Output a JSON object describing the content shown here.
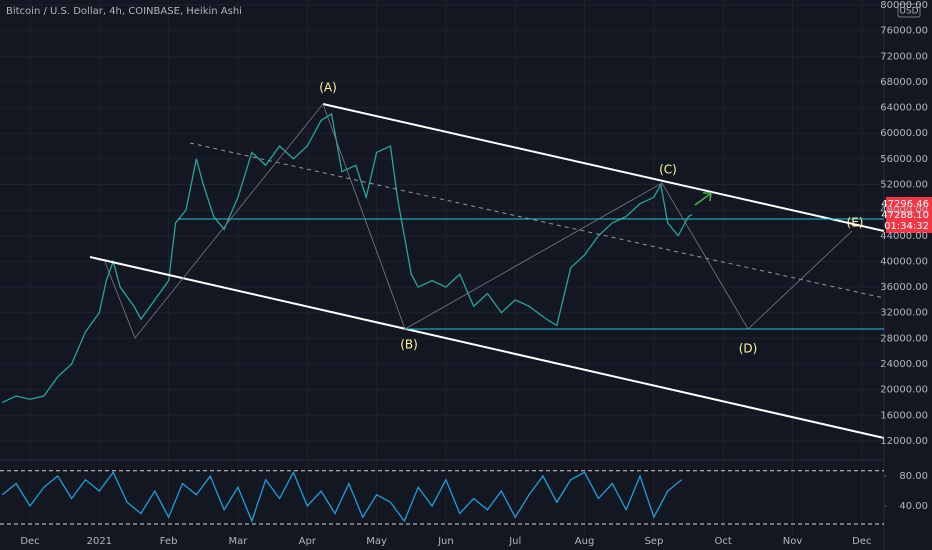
{
  "header": {
    "title": "Bitcoin / U.S. Dollar, 4h, COINBASE, Heikin Ashi",
    "currency": "USD",
    "price_tags": [
      "47296.46",
      "47288.10",
      "01:34:32"
    ]
  },
  "chart_data": [
    {
      "type": "line",
      "color": "#26a69a",
      "grid": true,
      "annotations": [
        "(A)",
        "(B)",
        "(C)",
        "(D)",
        "(E)"
      ],
      "x": [
        -0.4,
        -0.2,
        0,
        0.2,
        0.4,
        0.6,
        0.8,
        1.0,
        1.1,
        1.2,
        1.3,
        1.5,
        1.6,
        1.8,
        2.0,
        2.1,
        2.25,
        2.4,
        2.5,
        2.65,
        2.8,
        3.0,
        3.2,
        3.4,
        3.6,
        3.8,
        4.0,
        4.2,
        4.35,
        4.5,
        4.7,
        4.85,
        5.0,
        5.2,
        5.3,
        5.5,
        5.6,
        5.8,
        6.0,
        6.2,
        6.4,
        6.6,
        6.8,
        7.0,
        7.2,
        7.45,
        7.6,
        7.8,
        8.0,
        8.2,
        8.4,
        8.6,
        8.8,
        9.0,
        9.1,
        9.2,
        9.35,
        9.5,
        9.55
      ],
      "values": [
        18000,
        19000,
        18500,
        19000,
        22000,
        24000,
        29000,
        32000,
        37000,
        40000,
        36000,
        33000,
        31000,
        34000,
        37000,
        46000,
        48000,
        56000,
        52000,
        47000,
        45000,
        50000,
        57000,
        55000,
        58000,
        56000,
        58000,
        62000,
        63000,
        54000,
        55000,
        50000,
        57000,
        58000,
        50000,
        38000,
        36000,
        37000,
        36000,
        38000,
        33000,
        35000,
        32000,
        34000,
        33000,
        31000,
        30000,
        39000,
        41000,
        44000,
        46000,
        47000,
        49000,
        50000,
        52000,
        46000,
        44000,
        47000,
        47288
      ],
      "xlim": [
        -0.433,
        12.32
      ],
      "ylim": [
        9800,
        80780
      ],
      "xticks": [
        {
          "value": 0,
          "label": "Dec"
        },
        {
          "value": 1,
          "label": "2021"
        },
        {
          "value": 2,
          "label": "Feb"
        },
        {
          "value": 3,
          "label": "Mar"
        },
        {
          "value": 4,
          "label": "Apr"
        },
        {
          "value": 5,
          "label": "May"
        },
        {
          "value": 6,
          "label": "Jun"
        },
        {
          "value": 7,
          "label": "Jul"
        },
        {
          "value": 8,
          "label": "Aug"
        },
        {
          "value": 9,
          "label": "Sep"
        },
        {
          "value": 10,
          "label": "Oct"
        },
        {
          "value": 11,
          "label": "Nov"
        },
        {
          "value": 12,
          "label": "Dec"
        }
      ],
      "yticks": [
        {
          "value": 12000,
          "label": "12000.00"
        },
        {
          "value": 16000,
          "label": "16000.00"
        },
        {
          "value": 20000,
          "label": "20000.00"
        },
        {
          "value": 24000,
          "label": "24000.00"
        },
        {
          "value": 28000,
          "label": "28000.00"
        },
        {
          "value": 32000,
          "label": "32000.00"
        },
        {
          "value": 36000,
          "label": "36000.00"
        },
        {
          "value": 40000,
          "label": "40000.00"
        },
        {
          "value": 44000,
          "label": "44000.00"
        },
        {
          "value": 48000,
          "label": "48000.00"
        },
        {
          "value": 52000,
          "label": "52000.00"
        },
        {
          "value": 56000,
          "label": "56000.00"
        },
        {
          "value": 60000,
          "label": "60000.00"
        },
        {
          "value": 64000,
          "label": "64000.00"
        },
        {
          "value": 68000,
          "label": "68000.00"
        },
        {
          "value": 72000,
          "label": "72000.00"
        },
        {
          "value": 76000,
          "label": "76000.00"
        },
        {
          "value": 80000,
          "label": "80000.00"
        }
      ]
    },
    {
      "type": "line",
      "color": "#1e9fd8",
      "xlim": [
        -0.433,
        12.32
      ],
      "ylim": [
        8,
        94.7
      ],
      "yticks": [
        {
          "value": 40,
          "label": "40.00"
        },
        {
          "value": 80,
          "label": "80.00"
        }
      ],
      "bands": [
        87,
        16
      ],
      "x": [
        -0.4,
        -0.2,
        0,
        0.2,
        0.4,
        0.6,
        0.8,
        1.0,
        1.2,
        1.4,
        1.6,
        1.8,
        2.0,
        2.2,
        2.4,
        2.6,
        2.8,
        3.0,
        3.2,
        3.4,
        3.6,
        3.8,
        4.0,
        4.2,
        4.4,
        4.6,
        4.8,
        5.0,
        5.2,
        5.4,
        5.6,
        5.8,
        6.0,
        6.2,
        6.4,
        6.6,
        6.8,
        7.0,
        7.2,
        7.4,
        7.6,
        7.8,
        8.0,
        8.2,
        8.4,
        8.6,
        8.8,
        9.0,
        9.2,
        9.4
      ],
      "values": [
        55,
        70,
        40,
        65,
        80,
        50,
        75,
        60,
        85,
        45,
        30,
        60,
        25,
        70,
        55,
        80,
        35,
        65,
        20,
        75,
        50,
        85,
        40,
        60,
        30,
        70,
        25,
        55,
        45,
        20,
        65,
        40,
        75,
        30,
        50,
        35,
        60,
        25,
        55,
        80,
        45,
        75,
        85,
        50,
        70,
        35,
        80,
        25,
        60,
        75
      ]
    }
  ]
}
